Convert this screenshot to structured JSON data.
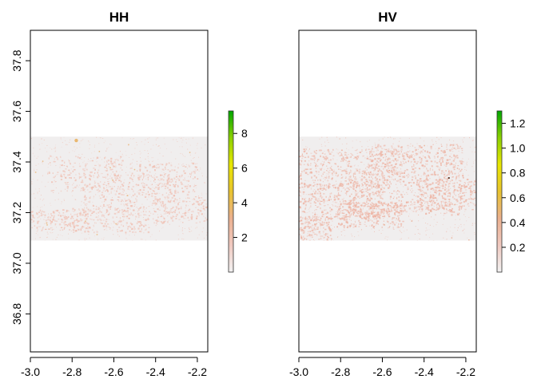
{
  "chart_data": [
    {
      "type": "heatmap",
      "title": "HH",
      "xlabel": "",
      "ylabel": "",
      "xlim": [
        -3.0,
        -2.15
      ],
      "ylim": [
        36.65,
        37.92
      ],
      "x_ticks": [
        -3.0,
        -2.8,
        -2.6,
        -2.4,
        -2.2
      ],
      "x_tick_labels": [
        "-3.0",
        "-2.8",
        "-2.6",
        "-2.4",
        "-2.2"
      ],
      "y_ticks": [
        36.8,
        37.0,
        37.2,
        37.4,
        37.6,
        37.8
      ],
      "y_tick_labels": [
        "36.8",
        "37.0",
        "37.2",
        "37.4",
        "37.6",
        "37.8"
      ],
      "data_extent": {
        "x": [
          -3.0,
          -2.15
        ],
        "y": [
          37.09,
          37.5
        ]
      },
      "colorbar": {
        "range": [
          0,
          9.3
        ],
        "ticks": [
          2,
          4,
          6,
          8
        ],
        "tick_labels": [
          "2",
          "4",
          "6",
          "8"
        ],
        "colors": [
          "#f2f2f2",
          "#f0c9c0",
          "#ebb08f",
          "#e8c32e",
          "#e8e600",
          "#8bd000",
          "#00a600"
        ]
      },
      "background_color": "#f0eeee",
      "speckle_color": "#f0bfb2",
      "hotspot_color": "#e8b06c",
      "grid": false,
      "legend": "right"
    },
    {
      "type": "heatmap",
      "title": "HV",
      "xlabel": "",
      "ylabel": "",
      "xlim": [
        -3.0,
        -2.15
      ],
      "ylim": [
        36.65,
        37.92
      ],
      "x_ticks": [
        -3.0,
        -2.8,
        -2.6,
        -2.4,
        -2.2
      ],
      "x_tick_labels": [
        "-3.0",
        "-2.8",
        "-2.6",
        "-2.4",
        "-2.2"
      ],
      "y_ticks": [],
      "y_tick_labels": [],
      "data_extent": {
        "x": [
          -3.0,
          -2.15
        ],
        "y": [
          37.09,
          37.5
        ]
      },
      "colorbar": {
        "range": [
          0,
          1.3
        ],
        "ticks": [
          0.2,
          0.4,
          0.6,
          0.8,
          1.0,
          1.2
        ],
        "tick_labels": [
          "0.2",
          "0.4",
          "0.6",
          "0.8",
          "1.0",
          "1.2"
        ],
        "colors": [
          "#f2f2f2",
          "#f0c9c0",
          "#ebb08f",
          "#e8c32e",
          "#e8e600",
          "#8bd000",
          "#00a600"
        ]
      },
      "background_color": "#f0eeee",
      "speckle_color": "#eeb4a4",
      "hotspot_color": "#e8a88a",
      "grid": false,
      "legend": "right"
    }
  ]
}
